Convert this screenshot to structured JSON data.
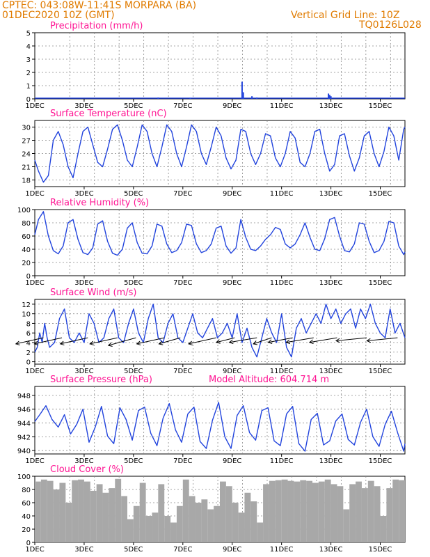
{
  "header": {
    "line1": "CPTEC:   043:08W-11:41S   MORPARA (BA)",
    "line2": "01DEC2020 10Z (GMT)",
    "grid_note": "Vertical Grid Line: 10Z",
    "code": "TQ0126L028"
  },
  "colors": {
    "header": "#e07b00",
    "title": "#ff1493",
    "line": "#2244dd",
    "cloud": "#a8a8a8",
    "wind": "#000000"
  },
  "x_axis": {
    "range_days": [
      1,
      16
    ],
    "ticks": [
      {
        "day": 1,
        "label": "1DEC"
      },
      {
        "day": 3,
        "label": "3DEC"
      },
      {
        "day": 5,
        "label": "5DEC"
      },
      {
        "day": 7,
        "label": "7DEC"
      },
      {
        "day": 9,
        "label": "9DEC"
      },
      {
        "day": 11,
        "label": "11DEC"
      },
      {
        "day": 13,
        "label": "13DEC"
      },
      {
        "day": 15,
        "label": "15DEC"
      }
    ]
  },
  "chart_data": [
    {
      "id": "precip",
      "type": "bar",
      "title": "Precipitation (mm/h)",
      "ylim": [
        0,
        5
      ],
      "yticks": [
        0,
        1,
        2,
        3,
        4,
        5
      ],
      "baseline": 0.05,
      "x": [
        9.4,
        9.45,
        9.8,
        10.0,
        12.9,
        12.95,
        13.0,
        6.0,
        7.3
      ],
      "values": [
        1.3,
        0.5,
        0.2,
        0.1,
        0.4,
        0.3,
        0.2,
        0.1,
        0.08
      ]
    },
    {
      "id": "temp",
      "type": "line",
      "title": "Surface Temperature (nC)",
      "ylim": [
        16.5,
        31.5
      ],
      "yticks": [
        18,
        21,
        24,
        27,
        30
      ],
      "x": [
        1.0,
        1.15,
        1.35,
        1.55,
        1.75,
        1.95,
        2.15,
        2.35,
        2.55,
        2.75,
        2.95,
        3.15,
        3.35,
        3.55,
        3.75,
        3.95,
        4.15,
        4.35,
        4.55,
        4.75,
        4.95,
        5.15,
        5.35,
        5.55,
        5.75,
        5.95,
        6.15,
        6.35,
        6.55,
        6.75,
        6.95,
        7.15,
        7.35,
        7.55,
        7.75,
        7.95,
        8.15,
        8.35,
        8.55,
        8.75,
        8.95,
        9.15,
        9.35,
        9.55,
        9.75,
        9.95,
        10.15,
        10.35,
        10.55,
        10.75,
        10.95,
        11.15,
        11.35,
        11.55,
        11.75,
        11.95,
        12.15,
        12.35,
        12.55,
        12.75,
        12.95,
        13.15,
        13.35,
        13.55,
        13.75,
        13.95,
        14.15,
        14.35,
        14.55,
        14.75,
        14.95,
        15.15,
        15.35,
        15.55,
        15.75,
        15.95,
        16.0
      ],
      "values": [
        22.5,
        20,
        17.5,
        19,
        27,
        29,
        26,
        21,
        18.5,
        24,
        29,
        30,
        26,
        22,
        21,
        25,
        29.5,
        30.5,
        27,
        22.5,
        21,
        25.5,
        30.5,
        29,
        24,
        21,
        25.5,
        30.5,
        29,
        24,
        21,
        25.5,
        30.5,
        29,
        24,
        21.5,
        25.5,
        30,
        28,
        23,
        20.5,
        22.5,
        29.5,
        29,
        24,
        21.5,
        24,
        28.5,
        28,
        23,
        21,
        24,
        29,
        27.5,
        22,
        21,
        24,
        29,
        29.5,
        24,
        20,
        21.5,
        28,
        28.5,
        23.5,
        20,
        23,
        28,
        29,
        24,
        21,
        24.5,
        30,
        28,
        22.5,
        29.5,
        30
      ]
    },
    {
      "id": "rh",
      "type": "line",
      "title": "Relative Humidity (%)",
      "ylim": [
        0,
        100
      ],
      "yticks": [
        0,
        20,
        40,
        60,
        80,
        100
      ],
      "x": [
        1.0,
        1.15,
        1.35,
        1.55,
        1.75,
        1.95,
        2.15,
        2.35,
        2.55,
        2.75,
        2.95,
        3.15,
        3.35,
        3.55,
        3.75,
        3.95,
        4.15,
        4.35,
        4.55,
        4.75,
        4.95,
        5.15,
        5.35,
        5.55,
        5.75,
        5.95,
        6.15,
        6.35,
        6.55,
        6.75,
        6.95,
        7.15,
        7.35,
        7.55,
        7.75,
        7.95,
        8.15,
        8.35,
        8.55,
        8.75,
        8.95,
        9.15,
        9.35,
        9.55,
        9.75,
        9.95,
        10.15,
        10.35,
        10.55,
        10.75,
        10.95,
        11.15,
        11.35,
        11.55,
        11.75,
        11.95,
        12.15,
        12.35,
        12.55,
        12.75,
        12.95,
        13.15,
        13.35,
        13.55,
        13.75,
        13.95,
        14.15,
        14.35,
        14.55,
        14.75,
        14.95,
        15.15,
        15.35,
        15.55,
        15.75,
        15.95,
        16.0
      ],
      "values": [
        62,
        85,
        97,
        60,
        38,
        33,
        45,
        80,
        85,
        55,
        35,
        32,
        42,
        78,
        83,
        52,
        34,
        31,
        40,
        72,
        80,
        50,
        34,
        33,
        45,
        78,
        75,
        48,
        35,
        38,
        50,
        78,
        76,
        48,
        35,
        38,
        48,
        72,
        75,
        45,
        34,
        42,
        85,
        58,
        40,
        38,
        45,
        55,
        62,
        73,
        70,
        48,
        42,
        48,
        62,
        80,
        58,
        40,
        38,
        56,
        85,
        88,
        60,
        38,
        36,
        48,
        80,
        78,
        52,
        35,
        38,
        52,
        82,
        80,
        45,
        32,
        36
      ]
    },
    {
      "id": "wind",
      "type": "line",
      "title": "Surface Wind (m/s)",
      "ylim": [
        -0.5,
        13
      ],
      "yticks": [
        0,
        2,
        4,
        6,
        8,
        10,
        12
      ],
      "x": [
        1.0,
        1.1,
        1.2,
        1.3,
        1.4,
        1.5,
        1.6,
        1.8,
        2.0,
        2.2,
        2.4,
        2.6,
        2.8,
        3.0,
        3.2,
        3.4,
        3.6,
        3.8,
        4.0,
        4.2,
        4.4,
        4.6,
        4.8,
        5.0,
        5.2,
        5.4,
        5.6,
        5.8,
        6.0,
        6.2,
        6.4,
        6.6,
        6.8,
        7.0,
        7.2,
        7.4,
        7.6,
        7.8,
        8.0,
        8.2,
        8.4,
        8.6,
        8.8,
        9.0,
        9.2,
        9.4,
        9.6,
        9.8,
        10.0,
        10.2,
        10.4,
        10.6,
        10.8,
        11.0,
        11.2,
        11.4,
        11.6,
        11.8,
        12.0,
        12.2,
        12.4,
        12.6,
        12.8,
        13.0,
        13.2,
        13.4,
        13.6,
        13.8,
        14.0,
        14.2,
        14.4,
        14.6,
        14.8,
        15.0,
        15.2,
        15.4,
        15.6,
        15.8,
        16.0
      ],
      "values": [
        2,
        3,
        6,
        4,
        8,
        5,
        3,
        4,
        9,
        11,
        5,
        4,
        6,
        4,
        10,
        8,
        4,
        5,
        9,
        11,
        5,
        4,
        8,
        11,
        6,
        4,
        9,
        12,
        5,
        4,
        8,
        10,
        5,
        4,
        7,
        10,
        6,
        5,
        7,
        9,
        5,
        6,
        8,
        5,
        10,
        4,
        7,
        3,
        1,
        5,
        9,
        6,
        4,
        10,
        3,
        1,
        7,
        9,
        6,
        8,
        10,
        8,
        12,
        9,
        11,
        8,
        10,
        11,
        7,
        11,
        9,
        12,
        8,
        6,
        5,
        11,
        6,
        8,
        5
      ],
      "arrows": [
        {
          "x": 1.35,
          "u": -0.9,
          "v": -0.4
        },
        {
          "x": 2.1,
          "u": -0.9,
          "v": -0.4
        },
        {
          "x": 3.15,
          "u": -0.9,
          "v": -0.4
        },
        {
          "x": 4.35,
          "u": -0.9,
          "v": -0.4
        },
        {
          "x": 5.1,
          "u": -0.9,
          "v": -0.5
        },
        {
          "x": 6.25,
          "u": -0.9,
          "v": -0.4
        },
        {
          "x": 6.9,
          "u": -0.7,
          "v": -0.4
        },
        {
          "x": 8.35,
          "u": -0.9,
          "v": -0.4
        },
        {
          "x": 9.1,
          "u": -0.6,
          "v": -0.3
        },
        {
          "x": 10.0,
          "u": -0.9,
          "v": -0.3
        },
        {
          "x": 10.6,
          "u": -0.6,
          "v": -0.4
        },
        {
          "x": 11.45,
          "u": -0.8,
          "v": -0.3
        },
        {
          "x": 12.3,
          "u": -0.9,
          "v": -0.3
        },
        {
          "x": 13.25,
          "u": -0.9,
          "v": -0.3
        },
        {
          "x": 14.45,
          "u": -1.0,
          "v": -0.2
        },
        {
          "x": 15.7,
          "u": -1.0,
          "v": -0.2
        }
      ]
    },
    {
      "id": "pres",
      "type": "line",
      "title": "Surface Pressure (hPa)",
      "subtitle": "Model Altitude: 604.714 m",
      "ylim": [
        939.5,
        949.3
      ],
      "yticks": [
        940,
        942,
        944,
        946,
        948
      ],
      "x": [
        1.0,
        1.2,
        1.45,
        1.7,
        1.95,
        2.2,
        2.45,
        2.7,
        2.95,
        3.2,
        3.45,
        3.7,
        3.95,
        4.2,
        4.45,
        4.7,
        4.95,
        5.2,
        5.45,
        5.7,
        5.95,
        6.2,
        6.45,
        6.7,
        6.95,
        7.2,
        7.45,
        7.7,
        7.95,
        8.2,
        8.45,
        8.7,
        8.95,
        9.2,
        9.45,
        9.7,
        9.95,
        10.2,
        10.45,
        10.7,
        10.95,
        11.2,
        11.45,
        11.7,
        11.95,
        12.2,
        12.45,
        12.7,
        12.95,
        13.2,
        13.45,
        13.7,
        13.95,
        14.2,
        14.45,
        14.7,
        14.95,
        15.2,
        15.45,
        15.7,
        15.95,
        16.0
      ],
      "values": [
        944.2,
        945.2,
        946.5,
        944.5,
        943.4,
        945.2,
        942.4,
        943.8,
        946.0,
        941.2,
        943.4,
        946.4,
        942.1,
        941.0,
        946.2,
        944.5,
        941.5,
        945.8,
        946.3,
        942.5,
        940.7,
        944.7,
        946.8,
        943.0,
        941.2,
        945.3,
        946.3,
        941.3,
        940.3,
        944.4,
        947.0,
        942.0,
        940.3,
        945.1,
        946.5,
        942.6,
        941.5,
        945.8,
        946.2,
        941.4,
        940.7,
        945.3,
        946.4,
        941.0,
        939.9,
        944.5,
        945.4,
        940.8,
        941.4,
        944.3,
        945.3,
        941.6,
        940.8,
        944.1,
        946.0,
        942.0,
        940.6,
        943.8,
        945.7,
        942.6,
        939.9,
        941.0
      ]
    },
    {
      "id": "cloud",
      "type": "bar",
      "title": "Cloud Cover (%)",
      "ylim": [
        0,
        100
      ],
      "yticks": [
        0,
        20,
        40,
        60,
        80,
        100
      ],
      "x": [
        1.0,
        1.25,
        1.5,
        1.75,
        2.0,
        2.25,
        2.5,
        2.75,
        3.0,
        3.25,
        3.5,
        3.75,
        4.0,
        4.25,
        4.5,
        4.75,
        5.0,
        5.25,
        5.5,
        5.75,
        6.0,
        6.25,
        6.5,
        6.75,
        7.0,
        7.25,
        7.5,
        7.75,
        8.0,
        8.25,
        8.5,
        8.75,
        9.0,
        9.25,
        9.5,
        9.75,
        10.0,
        10.25,
        10.5,
        10.75,
        11.0,
        11.25,
        11.5,
        11.75,
        12.0,
        12.25,
        12.5,
        12.75,
        13.0,
        13.25,
        13.5,
        13.75,
        14.0,
        14.25,
        14.5,
        14.75,
        15.0,
        15.25,
        15.5,
        15.75,
        15.95
      ],
      "values": [
        92,
        95,
        93,
        80,
        90,
        60,
        94,
        95,
        92,
        78,
        88,
        75,
        82,
        96,
        70,
        35,
        55,
        90,
        40,
        45,
        88,
        40,
        30,
        55,
        95,
        70,
        60,
        65,
        50,
        55,
        92,
        85,
        60,
        45,
        75,
        62,
        30,
        88,
        93,
        94,
        95,
        93,
        92,
        94,
        93,
        90,
        92,
        95,
        88,
        85,
        50,
        88,
        92,
        82,
        93,
        85,
        40,
        82,
        95,
        94,
        93
      ]
    }
  ]
}
